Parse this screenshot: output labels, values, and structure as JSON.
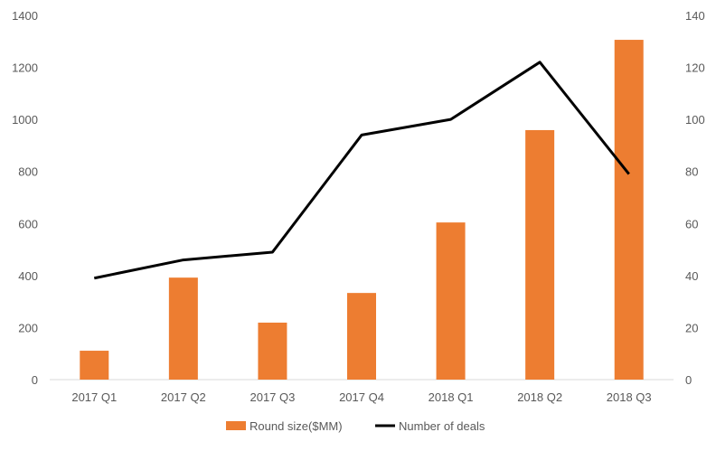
{
  "chart_data": {
    "type": "bar+line",
    "categories": [
      "2017 Q1",
      "2017 Q2",
      "2017 Q3",
      "2017 Q4",
      "2018 Q1",
      "2018 Q2",
      "2018 Q3"
    ],
    "series": [
      {
        "name": "Round size($MM)",
        "type": "bar",
        "axis": "left",
        "color": "#ED7D31",
        "values": [
          111,
          392,
          219,
          333,
          604,
          959,
          1306
        ]
      },
      {
        "name": "Number of deals",
        "type": "line",
        "axis": "right",
        "color": "#000000",
        "values": [
          39,
          46,
          49,
          94,
          100,
          122,
          79
        ]
      }
    ],
    "left_axis": {
      "ylim": [
        0,
        1400
      ],
      "ticks": [
        "0",
        "200",
        "400",
        "600",
        "800",
        "1000",
        "1200",
        "1400"
      ]
    },
    "right_axis": {
      "ylim": [
        0,
        140
      ],
      "ticks": [
        "0",
        "20",
        "40",
        "60",
        "80",
        "100",
        "120",
        "140"
      ]
    },
    "grid": false,
    "legend": {
      "placement": "bottom",
      "entries": [
        "Round size($MM)",
        "Number of deals"
      ]
    }
  }
}
